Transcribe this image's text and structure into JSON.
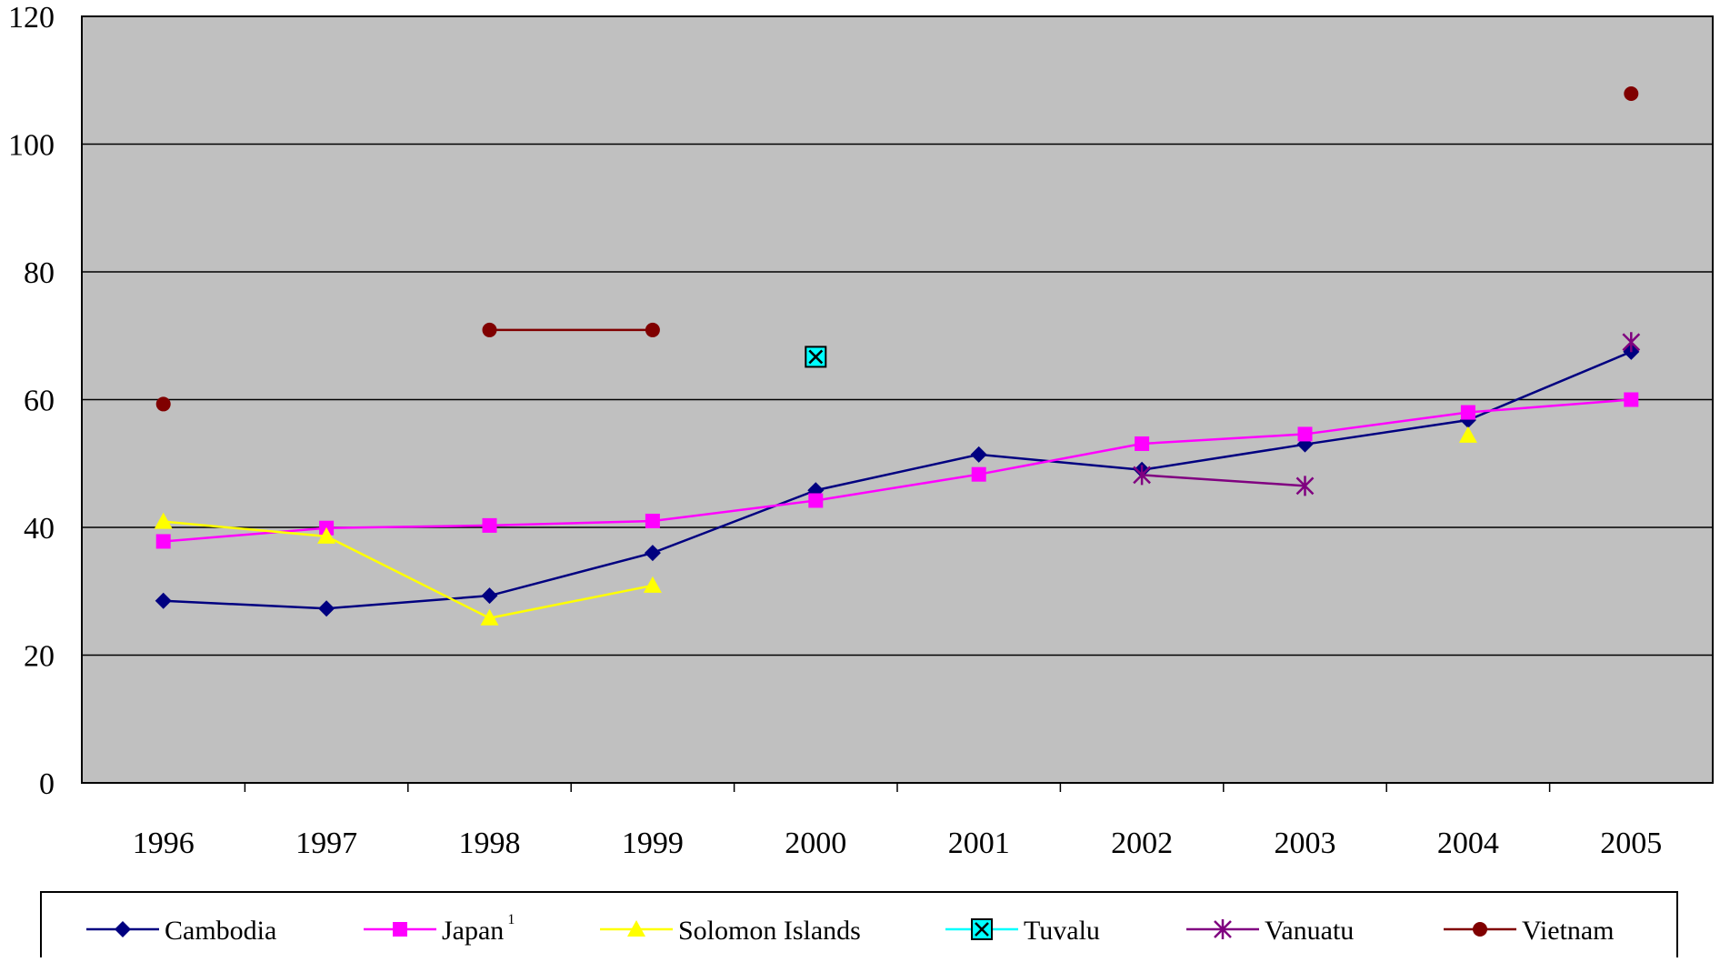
{
  "chart_data": {
    "type": "line",
    "categories": [
      "1996",
      "1997",
      "1998",
      "1999",
      "2000",
      "2001",
      "2002",
      "2003",
      "2004",
      "2005"
    ],
    "ylim": [
      0,
      120
    ],
    "yticks": [
      "0",
      "20",
      "40",
      "60",
      "80",
      "100",
      "120"
    ],
    "grid": "horizontal",
    "legend_position": "bottom",
    "plot_background": "#C0C0C0",
    "series": [
      {
        "name": "Cambodia",
        "color": "#000080",
        "marker": "diamond",
        "values": [
          28.5,
          27.3,
          29.3,
          36.0,
          45.8,
          51.4,
          49.0,
          53.0,
          56.8,
          67.5
        ]
      },
      {
        "name": "Japan",
        "superscript": "1",
        "color": "#FF00FF",
        "marker": "square",
        "values": [
          37.8,
          39.9,
          40.3,
          41.0,
          44.2,
          48.3,
          53.1,
          54.6,
          58.0,
          60.0
        ]
      },
      {
        "name": "Solomon Islands",
        "color": "#FFFF00",
        "marker": "triangle",
        "values": [
          40.9,
          38.6,
          25.8,
          30.9,
          null,
          null,
          null,
          null,
          54.4,
          null
        ]
      },
      {
        "name": "Tuvalu",
        "color": "#00FFFF",
        "marker": "x-square",
        "values": [
          null,
          null,
          null,
          null,
          66.7,
          null,
          null,
          null,
          null,
          null
        ]
      },
      {
        "name": "Vanuatu",
        "color": "#800080",
        "marker": "asterisk",
        "values": [
          null,
          null,
          null,
          null,
          null,
          null,
          48.2,
          46.5,
          null,
          69.0
        ]
      },
      {
        "name": "Vietnam",
        "color": "#800000",
        "marker": "circle",
        "values": [
          59.3,
          null,
          70.9,
          70.9,
          null,
          null,
          null,
          null,
          null,
          107.9
        ]
      }
    ]
  }
}
